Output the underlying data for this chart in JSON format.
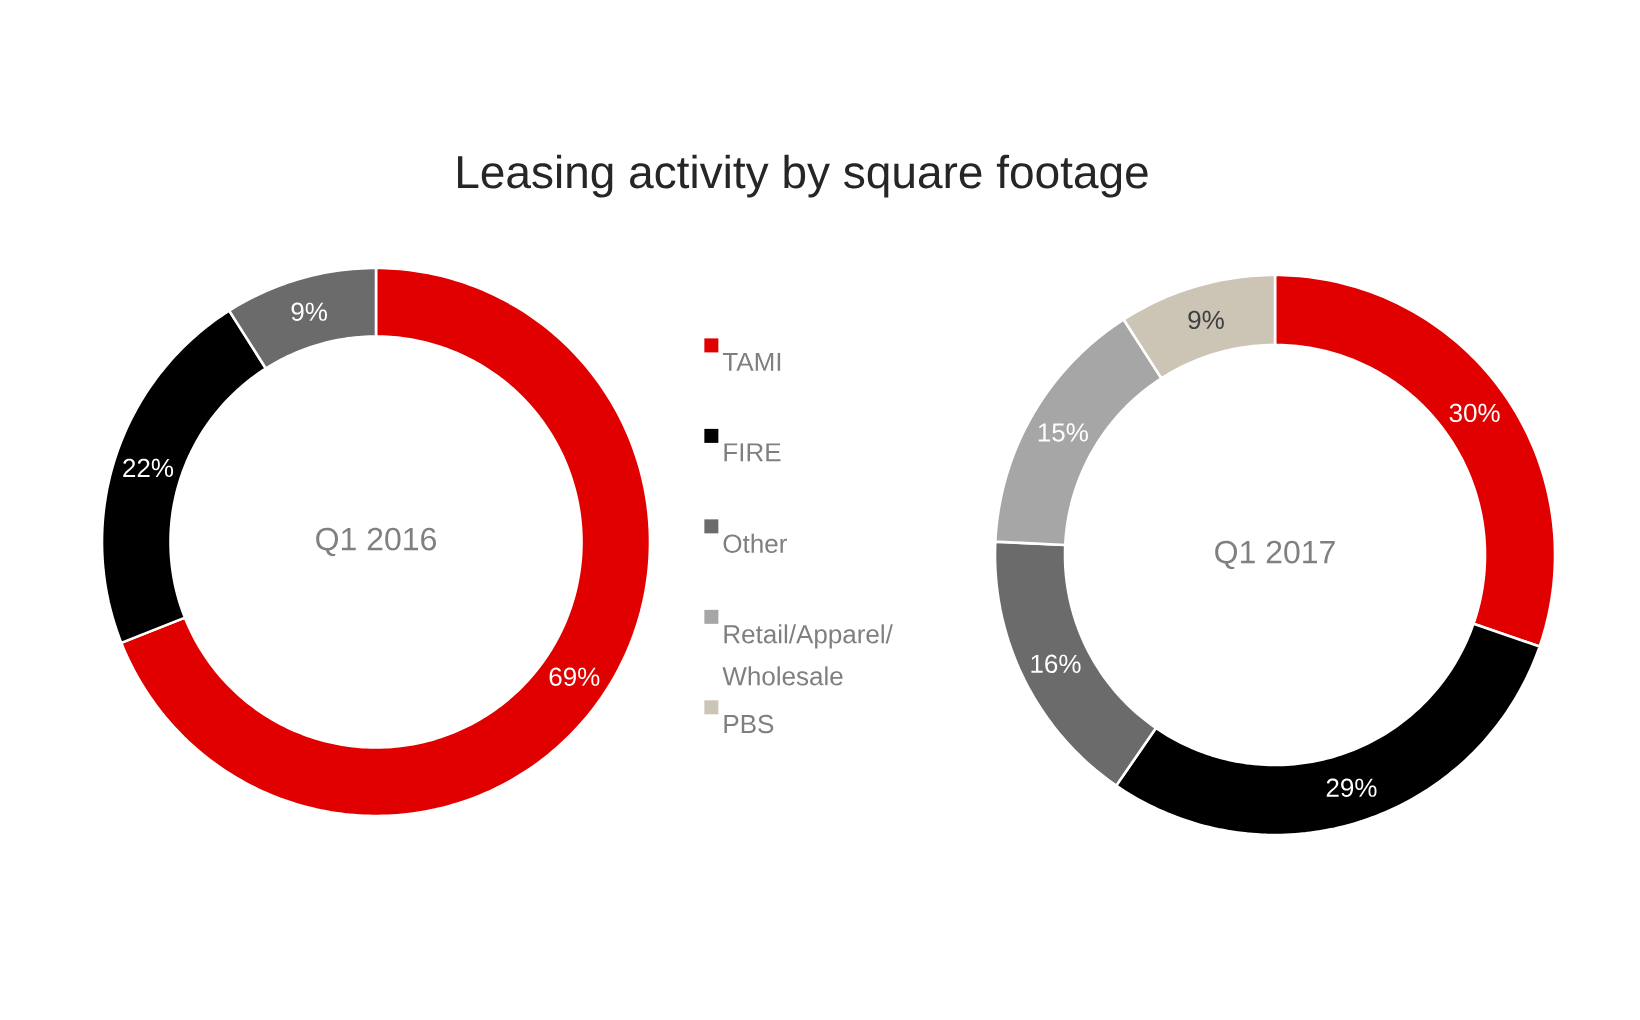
{
  "chart_data": {
    "type": "donut",
    "title": "Leasing activity by square footage",
    "categories": [
      "TAMI",
      "FIRE",
      "Other",
      "Retail/Apparel/Wholesale",
      "PBS"
    ],
    "colors": [
      "#e00000",
      "#000000",
      "#6b6b6b",
      "#a6a6a6",
      "#ccc4b4"
    ],
    "series": [
      {
        "name": "Q1 2016",
        "values": [
          69,
          22,
          9,
          null,
          null
        ],
        "value_labels": [
          "69%",
          "22%",
          "9%",
          null,
          null
        ]
      },
      {
        "name": "Q1 2017",
        "values": [
          30,
          29,
          16,
          15,
          9
        ],
        "value_labels": [
          "30%",
          "29%",
          "16%",
          "15%",
          "9%"
        ]
      }
    ],
    "legend": "center"
  }
}
